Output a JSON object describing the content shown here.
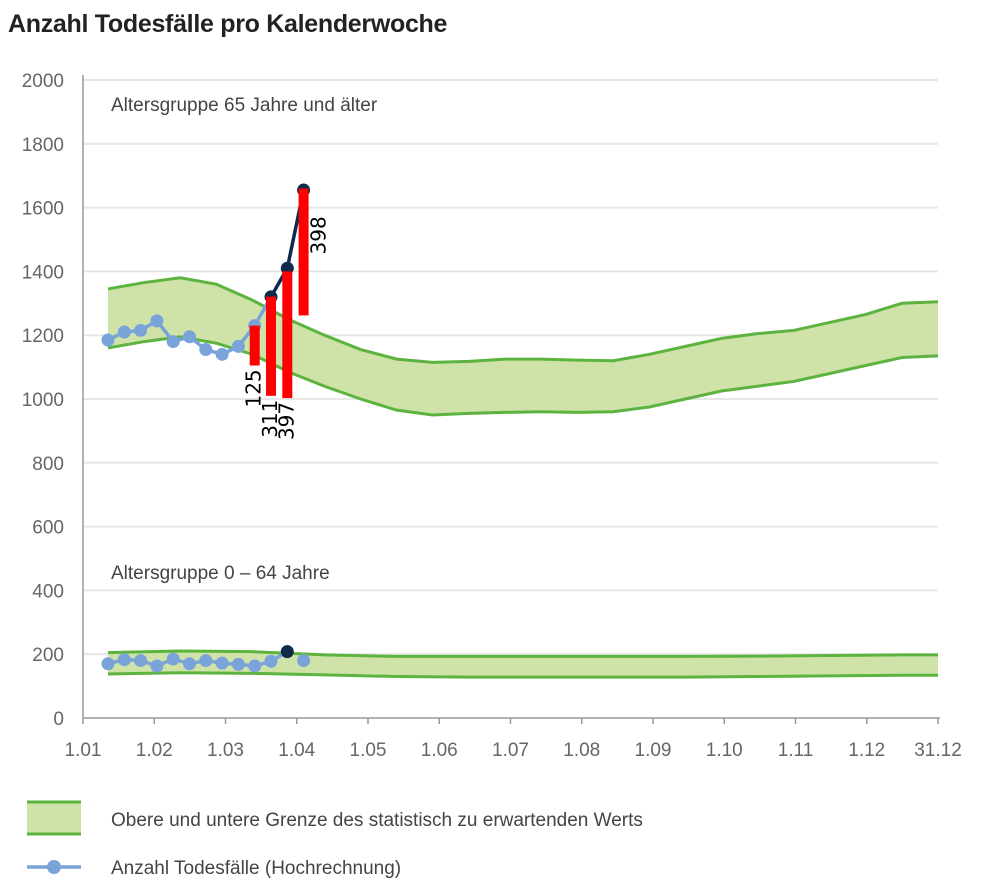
{
  "title": "Anzahl Todesfälle pro Kalenderwoche",
  "chart_data": {
    "type": "line",
    "title": "Anzahl Todesfälle pro Kalenderwoche",
    "xlabel": "",
    "ylabel": "",
    "ylim": [
      0,
      2000
    ],
    "y_ticks": [
      "0",
      "200",
      "400",
      "600",
      "800",
      "1000",
      "1200",
      "1400",
      "1600",
      "1800",
      "2000"
    ],
    "x_ticks": [
      "1.01",
      "1.02",
      "1.03",
      "1.04",
      "1.05",
      "1.06",
      "1.07",
      "1.08",
      "1.09",
      "1.10",
      "1.11",
      "1.12",
      "31.12"
    ],
    "grid": true,
    "legend_position": "bottom",
    "panel_labels": [
      "Altersgruppe 65 Jahre und älter",
      "Altersgruppe 0 – 64 Jahre"
    ],
    "legend": {
      "band_label": "Obere und untere Grenze des statistisch zu erwartenden Werts",
      "line_label": "Anzahl Todesfälle (Hochrechnung)"
    },
    "colors": {
      "band_fill": "#cfe3a8",
      "band_stroke": "#5cb33f",
      "line": "#7aa3d9",
      "line_projection": "#0f2a4a",
      "bars": "#ff0000",
      "grid": "#e6e6e6",
      "axis": "#999999"
    },
    "bands": [
      {
        "group": "65+",
        "x": [
          1.0,
          1.5,
          2.0,
          2.5,
          3.0,
          3.5,
          4.0,
          4.5,
          5.0,
          5.5,
          6.0,
          6.5,
          7.0,
          7.5,
          8.0,
          8.5,
          9.0,
          9.5,
          10.0,
          10.5,
          11.0,
          11.5,
          12.0,
          12.5
        ],
        "upper": [
          1345,
          1365,
          1380,
          1360,
          1310,
          1250,
          1200,
          1155,
          1125,
          1115,
          1118,
          1125,
          1125,
          1122,
          1120,
          1140,
          1165,
          1190,
          1205,
          1215,
          1240,
          1265,
          1300,
          1305
        ],
        "lower": [
          1160,
          1180,
          1195,
          1175,
          1140,
          1085,
          1040,
          1000,
          965,
          950,
          955,
          958,
          960,
          958,
          960,
          975,
          1000,
          1025,
          1040,
          1055,
          1080,
          1105,
          1130,
          1135
        ]
      },
      {
        "group": "0-64",
        "x": [
          1.0,
          2.0,
          3.0,
          4.0,
          5.0,
          6.0,
          7.0,
          8.0,
          9.0,
          10.0,
          11.0,
          12.0,
          12.5
        ],
        "upper": [
          205,
          210,
          208,
          198,
          193,
          193,
          193,
          193,
          193,
          194,
          196,
          198,
          198
        ],
        "lower": [
          138,
          142,
          140,
          135,
          130,
          128,
          128,
          128,
          128,
          130,
          132,
          134,
          134
        ]
      }
    ],
    "series": [
      {
        "name": "Anzahl Todesfälle (Hochrechnung)",
        "group": "65+",
        "x": [
          1.0,
          1.2,
          1.4,
          1.6,
          1.8,
          2.0,
          2.2,
          2.4,
          2.6,
          2.8,
          3.0,
          3.2,
          3.4
        ],
        "y": [
          1185,
          1210,
          1215,
          1245,
          1180,
          1195,
          1155,
          1140,
          1165,
          1230,
          1320,
          1410,
          1655
        ]
      },
      {
        "name": "Anzahl Todesfälle (Hochrechnung)",
        "group": "0-64",
        "x": [
          1.0,
          1.2,
          1.4,
          1.6,
          1.8,
          2.0,
          2.2,
          2.4,
          2.6,
          2.8,
          3.0,
          3.2,
          3.4
        ],
        "y": [
          170,
          183,
          180,
          163,
          185,
          170,
          180,
          172,
          168,
          163,
          178,
          208,
          180
        ]
      }
    ],
    "annotation_bars": [
      {
        "x": 2.8,
        "base": 1105,
        "value": 125,
        "label": "125"
      },
      {
        "x": 3.0,
        "base": 1010,
        "value": 311,
        "label": "311"
      },
      {
        "x": 3.2,
        "base": 1003,
        "value": 397,
        "label": "397"
      },
      {
        "x": 3.4,
        "base": 1262,
        "value": 398,
        "label": "398"
      }
    ]
  }
}
